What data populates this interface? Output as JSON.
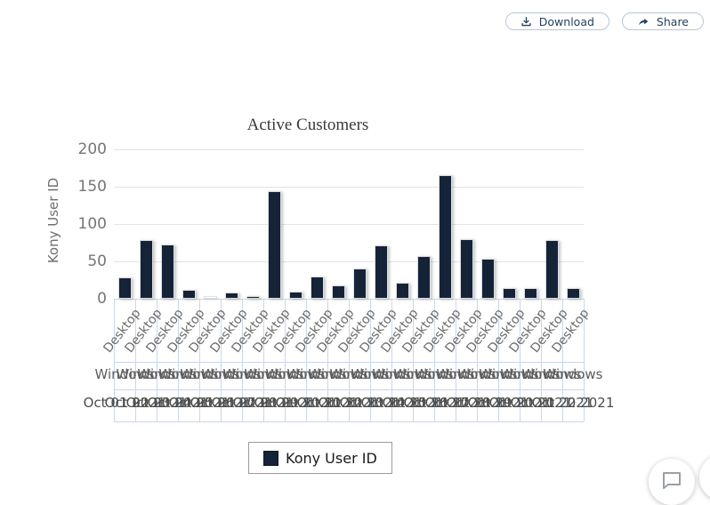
{
  "toolbar": {
    "download": {
      "label": "Download",
      "icon": "download-icon"
    },
    "share": {
      "label": "Share",
      "icon": "share-icon"
    }
  },
  "chart_data": {
    "type": "bar",
    "title": "Active Customers",
    "xlabel": "",
    "ylabel": "Kony User ID",
    "ylim": [
      0,
      200
    ],
    "yticks": [
      0,
      50,
      100,
      150,
      200
    ],
    "grid": "horizontal gray lines in plot; light-blue boxed multi-row category axis below",
    "bar_color": "#152338",
    "legend": {
      "position": "bottom",
      "entries": [
        {
          "label": "Kony User ID",
          "color": "#152338"
        }
      ]
    },
    "series_name": "Kony User ID",
    "x_labels": {
      "device_row": "Desktop",
      "os_row": "Windows",
      "date_row": [
        "Oct 01 2021",
        "Oct 02 2021",
        "Oct 03 2021",
        "Oct 04 2021",
        "Oct 05 2021",
        "Oct 06 2021",
        "Oct 07 2021",
        "Oct 08 2021",
        "Oct 09 2021",
        "Oct 10 2021",
        "Oct 11 2021",
        "Oct 12 2021",
        "Oct 13 2021",
        "Oct 14 2021",
        "Oct 15 2021",
        "Oct 16 2021",
        "Oct 17 2021",
        "Oct 18 2021",
        "Oct 19 2021",
        "Oct 20 2021",
        "Oct 21 2021",
        "Oct 22 2021"
      ]
    },
    "values": [
      29,
      79,
      73,
      12,
      1,
      8,
      4,
      144,
      10,
      30,
      18,
      41,
      71,
      22,
      57,
      166,
      80,
      54,
      14,
      14,
      79,
      14
    ],
    "near_zero_white_bar_index": 4
  },
  "floating": {
    "chat_button_icon": "chat-bubble-icon",
    "edge_widget_icon": "chevron-left-icon"
  }
}
